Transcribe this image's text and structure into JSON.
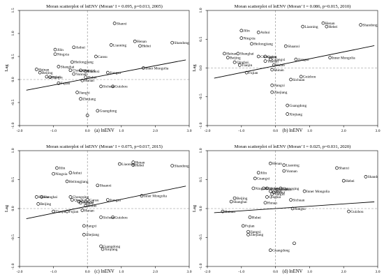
{
  "chart_data": [
    {
      "type": "scatter",
      "title": "Moran scatterplot of lnENV (Moran’ I = 0.095, p=0.013, 2005)",
      "xlabel": "lnENV",
      "ylabel": "Lag",
      "caption": "(a) lnENV",
      "xlim": [
        -2.0,
        3.0
      ],
      "ylim": [
        -1.0,
        1.5
      ],
      "xticks": [
        "-2.0",
        "-1.0",
        "0.0",
        "1.0",
        "2.0",
        "3.0"
      ],
      "yticks": [
        "-1.0",
        "-0.5",
        "0.0",
        "0.5",
        "1.0",
        "1.5"
      ],
      "fit": {
        "slope": 0.14,
        "intercept": 0.02
      },
      "points": [
        {
          "x": 0.8,
          "y": 1.22,
          "label": "Shanxi"
        },
        {
          "x": 2.5,
          "y": 0.8,
          "label": "Shandong"
        },
        {
          "x": 1.4,
          "y": 0.83,
          "label": "Henan"
        },
        {
          "x": 1.55,
          "y": 0.73,
          "label": "Hebei"
        },
        {
          "x": 0.7,
          "y": 0.75,
          "label": "Liaoning"
        },
        {
          "x": 0.25,
          "y": 0.5,
          "label": "Gansu"
        },
        {
          "x": -0.4,
          "y": 0.7,
          "label": "Anhui"
        },
        {
          "x": -0.95,
          "y": 0.65,
          "label": "Jilin"
        },
        {
          "x": -0.95,
          "y": 0.55,
          "label": "Ningxia"
        },
        {
          "x": -0.45,
          "y": 0.38,
          "label": "Heilongjiang"
        },
        {
          "x": -0.85,
          "y": 0.28,
          "label": "Shanghai"
        },
        {
          "x": -1.5,
          "y": 0.22,
          "label": "Hainan"
        },
        {
          "x": -1.4,
          "y": 0.15,
          "label": "Beijing"
        },
        {
          "x": -1.1,
          "y": 0.05,
          "label": "Tianjin"
        },
        {
          "x": -1.2,
          "y": 0.06,
          "label": "Qinghai"
        },
        {
          "x": -0.5,
          "y": 0.2,
          "label": "Chongqing"
        },
        {
          "x": -0.2,
          "y": 0.2,
          "label": "Guangxi"
        },
        {
          "x": -0.05,
          "y": 0.18,
          "label": "Shaanxi"
        },
        {
          "x": -0.4,
          "y": 0.12,
          "label": "Yunnan"
        },
        {
          "x": -0.05,
          "y": 0.05,
          "label": "Hubei"
        },
        {
          "x": -0.15,
          "y": -0.02,
          "label": "Hunan"
        },
        {
          "x": 0.6,
          "y": 0.15,
          "label": "Jiangsu"
        },
        {
          "x": 1.65,
          "y": 0.25,
          "label": "Inner Mongolia"
        },
        {
          "x": -0.85,
          "y": -0.08,
          "label": "Fujian"
        },
        {
          "x": 0.4,
          "y": -0.15,
          "label": "Sichuan"
        },
        {
          "x": 0.75,
          "y": -0.15,
          "label": "Guizhou"
        },
        {
          "x": -0.3,
          "y": -0.28,
          "label": "Jiangxi"
        },
        {
          "x": -0.2,
          "y": -0.42,
          "label": "Zhejiang"
        },
        {
          "x": 0.3,
          "y": -0.68,
          "label": "Guangdong"
        },
        {
          "x": 0.0,
          "y": -0.78,
          "label": ""
        }
      ]
    },
    {
      "type": "scatter",
      "title": "Moran scatterplot of lnENV (Moran’ I = 0.086, p=0.015, 2010)",
      "xlabel": "lnENV",
      "ylabel": "Lag",
      "caption": "(b) lnENV",
      "xlim": [
        -2.0,
        3.0
      ],
      "ylim": [
        -1.0,
        1.0
      ],
      "xticks": [
        "-2.0",
        "-1.0",
        "0.0",
        "1.0",
        "2.0",
        "3.0"
      ],
      "yticks": [
        "-1.0",
        "-0.5",
        "0.0",
        "0.5",
        "1.0"
      ],
      "fit": {
        "slope": 0.12,
        "intercept": 0.04
      },
      "points": [
        {
          "x": 0.8,
          "y": 1.05,
          "label": "Shanxi"
        },
        {
          "x": 1.4,
          "y": 0.78,
          "label": "Henan"
        },
        {
          "x": 1.5,
          "y": 0.72,
          "label": "Hebei"
        },
        {
          "x": 0.8,
          "y": 0.72,
          "label": "Liaoning"
        },
        {
          "x": 2.5,
          "y": 0.75,
          "label": "Shandong"
        },
        {
          "x": -1.0,
          "y": 0.65,
          "label": "Jilin"
        },
        {
          "x": -0.5,
          "y": 0.62,
          "label": "Anhui"
        },
        {
          "x": -1.0,
          "y": 0.52,
          "label": "Ningxia"
        },
        {
          "x": -0.7,
          "y": 0.42,
          "label": "Heilongjiang"
        },
        {
          "x": 0.3,
          "y": 0.38,
          "label": "Shaanxi"
        },
        {
          "x": -1.5,
          "y": 0.25,
          "label": "Hainan"
        },
        {
          "x": -1.1,
          "y": 0.25,
          "label": "Shanghai"
        },
        {
          "x": -1.4,
          "y": 0.18,
          "label": "Beijing"
        },
        {
          "x": -1.2,
          "y": 0.1,
          "label": "Qinghai"
        },
        {
          "x": -1.05,
          "y": 0.05,
          "label": "Tianjin"
        },
        {
          "x": -0.5,
          "y": 0.2,
          "label": "Chongqing"
        },
        {
          "x": -0.3,
          "y": 0.2,
          "label": "Gansu"
        },
        {
          "x": -0.15,
          "y": 0.15,
          "label": "Guangxi"
        },
        {
          "x": -0.3,
          "y": 0.12,
          "label": "Yunnan"
        },
        {
          "x": -0.05,
          "y": 0.05,
          "label": "Hubei"
        },
        {
          "x": -0.1,
          "y": -0.03,
          "label": "Hunan"
        },
        {
          "x": 0.6,
          "y": 0.15,
          "label": "Jiangsu"
        },
        {
          "x": 1.6,
          "y": 0.18,
          "label": "Inner Mongolia"
        },
        {
          "x": -0.85,
          "y": -0.08,
          "label": "Fujian"
        },
        {
          "x": 0.45,
          "y": -0.2,
          "label": "Sichuan"
        },
        {
          "x": 0.75,
          "y": -0.15,
          "label": "Guizhou"
        },
        {
          "x": -0.1,
          "y": -0.3,
          "label": "Jiangxi"
        },
        {
          "x": -0.1,
          "y": -0.42,
          "label": "Zhejiang"
        },
        {
          "x": 0.35,
          "y": -0.65,
          "label": "Guangdong"
        },
        {
          "x": 0.35,
          "y": -0.8,
          "label": "Xinjiang"
        }
      ]
    },
    {
      "type": "scatter",
      "title": "Moran scatterplot of lnENV (Moran’ I = 0.075, p=0.017, 2015)",
      "xlabel": "lnENV",
      "ylabel": "Lag",
      "caption": "(c) lnENV",
      "xlim": [
        -2.0,
        3.0
      ],
      "ylim": [
        -1.0,
        1.0
      ],
      "xticks": [
        "-2.0",
        "-1.0",
        "0.0",
        "1.0",
        "2.0",
        "3.0"
      ],
      "yticks": [
        "-1.0",
        "-0.5",
        "0.0",
        "0.5",
        "1.0"
      ],
      "fit": {
        "slope": 0.12,
        "intercept": 0.04
      },
      "points": [
        {
          "x": 0.75,
          "y": 1.05,
          "label": "Shanxi"
        },
        {
          "x": 1.35,
          "y": 0.8,
          "label": "Henan"
        },
        {
          "x": 0.95,
          "y": 0.77,
          "label": "Liaoning"
        },
        {
          "x": 1.35,
          "y": 0.75,
          "label": "Hebei"
        },
        {
          "x": 2.5,
          "y": 0.74,
          "label": "Shandong"
        },
        {
          "x": -0.9,
          "y": 0.7,
          "label": "Jilin"
        },
        {
          "x": -0.5,
          "y": 0.62,
          "label": "Anhui"
        },
        {
          "x": -1.0,
          "y": 0.6,
          "label": "Ningxia"
        },
        {
          "x": -0.6,
          "y": 0.47,
          "label": "Heilongjiang"
        },
        {
          "x": 0.3,
          "y": 0.4,
          "label": "Shaanxi"
        },
        {
          "x": -1.5,
          "y": 0.2,
          "label": "Hainan"
        },
        {
          "x": -1.35,
          "y": 0.2,
          "label": "Shanghai"
        },
        {
          "x": -1.45,
          "y": 0.08,
          "label": "Beijing"
        },
        {
          "x": -0.5,
          "y": 0.2,
          "label": "Chongqing"
        },
        {
          "x": -0.45,
          "y": 0.15,
          "label": "Qinghai"
        },
        {
          "x": -0.25,
          "y": 0.12,
          "label": "Guangxi"
        },
        {
          "x": -0.2,
          "y": 0.1,
          "label": "Yunnan"
        },
        {
          "x": 0.0,
          "y": 0.15,
          "label": "Gansu"
        },
        {
          "x": -0.05,
          "y": 0.05,
          "label": "Hubei"
        },
        {
          "x": -0.15,
          "y": -0.03,
          "label": "Hunan"
        },
        {
          "x": 0.6,
          "y": 0.15,
          "label": "Jiangsu"
        },
        {
          "x": 1.6,
          "y": 0.22,
          "label": "Inner Mongolia"
        },
        {
          "x": -1.0,
          "y": -0.05,
          "label": "Tianjin"
        },
        {
          "x": -0.6,
          "y": -0.05,
          "label": "Fujian"
        },
        {
          "x": 0.4,
          "y": -0.15,
          "label": "Sichuan"
        },
        {
          "x": 0.75,
          "y": -0.15,
          "label": "Guizhou"
        },
        {
          "x": -0.1,
          "y": -0.3,
          "label": "Jiangxi"
        },
        {
          "x": -0.1,
          "y": -0.45,
          "label": "Zhejiang"
        },
        {
          "x": 0.4,
          "y": -0.65,
          "label": "Guangdong"
        },
        {
          "x": 0.45,
          "y": -0.7,
          "label": "Xinjiang"
        }
      ]
    },
    {
      "type": "scatter",
      "title": "Moran scatterplot of lnENV (Moran’ I = 0.025, p=0.031, 2020)",
      "xlabel": "lnENV",
      "ylabel": "Lag",
      "caption": "(d) lnENV",
      "xlim": [
        -2.0,
        3.0
      ],
      "ylim": [
        -1.0,
        1.0
      ],
      "xticks": [
        "-2.0",
        "-1.0",
        "0.0",
        "1.0",
        "2.0",
        "3.0"
      ],
      "yticks": [
        "-1.0",
        "-0.5",
        "0.0",
        "0.5",
        "1.0"
      ],
      "fit": {
        "slope": 0.04,
        "intercept": 0.0
      },
      "points": [
        {
          "x": -0.15,
          "y": 0.78,
          "label": "Henan"
        },
        {
          "x": 0.25,
          "y": 0.75,
          "label": "Liaoning"
        },
        {
          "x": 0.25,
          "y": 0.65,
          "label": "Yunnan"
        },
        {
          "x": -0.5,
          "y": 0.62,
          "label": "Jilin"
        },
        {
          "x": -0.6,
          "y": 0.52,
          "label": "Guangxi"
        },
        {
          "x": 1.8,
          "y": 0.7,
          "label": "Shanxi"
        },
        {
          "x": 2.65,
          "y": 0.55,
          "label": "Shandong"
        },
        {
          "x": 2.0,
          "y": 0.48,
          "label": "Hebei"
        },
        {
          "x": 0.85,
          "y": 0.3,
          "label": "Inner Mongolia"
        },
        {
          "x": -0.65,
          "y": 0.35,
          "label": "Ningxia"
        },
        {
          "x": -0.35,
          "y": 0.35,
          "label": "Xinjiang"
        },
        {
          "x": -0.25,
          "y": 0.35,
          "label": "Heilongjiang"
        },
        {
          "x": 0.05,
          "y": 0.33,
          "label": "Shaanxi"
        },
        {
          "x": 0.15,
          "y": 0.35,
          "label": "Chongqing"
        },
        {
          "x": -0.15,
          "y": 0.3,
          "label": "Gansu"
        },
        {
          "x": -0.1,
          "y": 0.25,
          "label": "Tianjin"
        },
        {
          "x": -0.05,
          "y": 0.28,
          "label": "Anhui"
        },
        {
          "x": -0.25,
          "y": 0.2,
          "label": "Qinghai"
        },
        {
          "x": -0.3,
          "y": 0.1,
          "label": "Hunan"
        },
        {
          "x": 0.45,
          "y": 0.15,
          "label": "Sichuan"
        },
        {
          "x": -1.2,
          "y": 0.18,
          "label": "Beijing"
        },
        {
          "x": -1.3,
          "y": 0.12,
          "label": "Shanghai"
        },
        {
          "x": -1.55,
          "y": -0.05,
          "label": "Hainan"
        },
        {
          "x": 0.5,
          "y": 0.0,
          "label": "Jiangsu"
        },
        {
          "x": 2.15,
          "y": -0.05,
          "label": "Guizhou"
        },
        {
          "x": -0.75,
          "y": -0.15,
          "label": "Hubei"
        },
        {
          "x": -0.95,
          "y": -0.3,
          "label": "Fujian"
        },
        {
          "x": -0.8,
          "y": -0.4,
          "label": "Jiangxi"
        },
        {
          "x": -0.8,
          "y": -0.45,
          "label": "Zhejiang"
        },
        {
          "x": 0.55,
          "y": -0.6,
          "label": ""
        },
        {
          "x": -0.15,
          "y": -0.72,
          "label": "Guangdong"
        }
      ]
    }
  ]
}
